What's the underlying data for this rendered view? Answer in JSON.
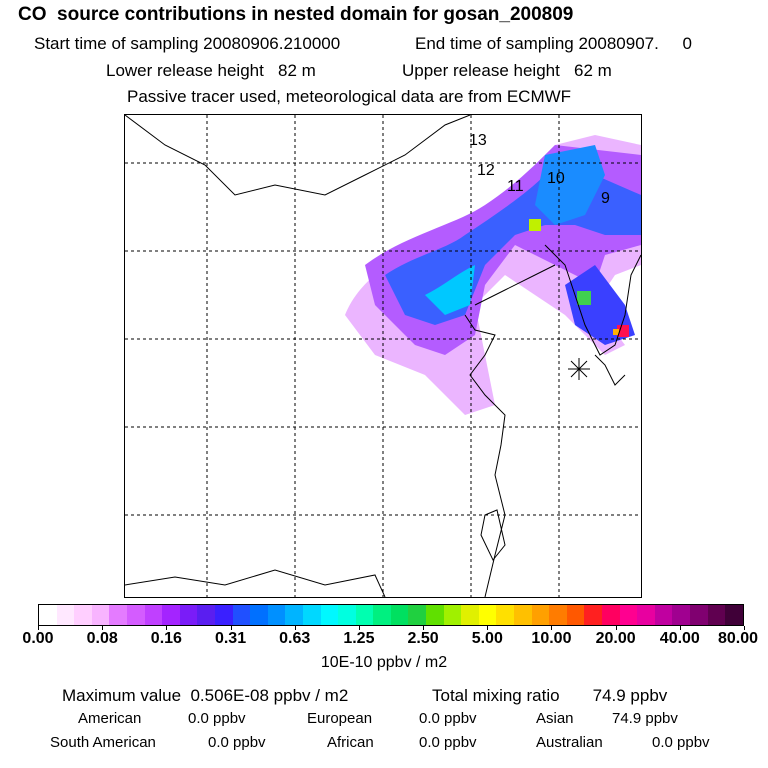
{
  "header": {
    "title": "CO  source contributions in nested domain for gosan_200809",
    "start_label": "Start time of sampling 20080906.210000",
    "end_label": "End time of sampling 20080907.     0",
    "lower_release": "Lower release height   82 m",
    "upper_release": "Upper release height   62 m",
    "tracer_note": "Passive tracer used, meteorological data are from ECMWF"
  },
  "map": {
    "contour_labels": [
      "13",
      "12",
      "11",
      "10",
      "9"
    ],
    "receptor_marker": "asterisk"
  },
  "colorbar": {
    "tick_labels": [
      "0.00",
      "0.08",
      "0.16",
      "0.31",
      "0.63",
      "1.25",
      "2.50",
      "5.00",
      "10.00",
      "20.00",
      "40.00",
      "80.00"
    ],
    "unit": "10E-10 ppbv / m2",
    "colors": [
      "#ffffff",
      "#ffe8ff",
      "#ffcfff",
      "#f8b4ff",
      "#e47bff",
      "#d45cff",
      "#c040ff",
      "#a424ff",
      "#7a1cf8",
      "#5a1ef0",
      "#3a20ff",
      "#2050ff",
      "#0070ff",
      "#0090ff",
      "#00b4ff",
      "#00d8ff",
      "#00f8ff",
      "#00ffe0",
      "#00ffb0",
      "#00f080",
      "#00e060",
      "#20d040",
      "#60e000",
      "#a0f000",
      "#e0f000",
      "#ffff00",
      "#ffe000",
      "#ffc000",
      "#ffa000",
      "#ff7c00",
      "#ff5800",
      "#ff2020",
      "#ff0060",
      "#ff0090",
      "#e800a0",
      "#c000a0",
      "#a00090",
      "#800070",
      "#600050",
      "#400038"
    ]
  },
  "summary": {
    "max_value": "Maximum value  0.506E-08 ppbv / m2",
    "total_mixing": "Total mixing ratio       74.9 ppbv",
    "american_label": "American",
    "american_value": "0.0 ppbv",
    "european_label": "European",
    "european_value": "0.0 ppbv",
    "asian_label": "Asian",
    "asian_value": "74.9 ppbv",
    "south_american_label": "South American",
    "south_american_value": "0.0 ppbv",
    "african_label": "African",
    "african_value": "0.0 ppbv",
    "australian_label": "Australian",
    "australian_value": "0.0 ppbv"
  }
}
